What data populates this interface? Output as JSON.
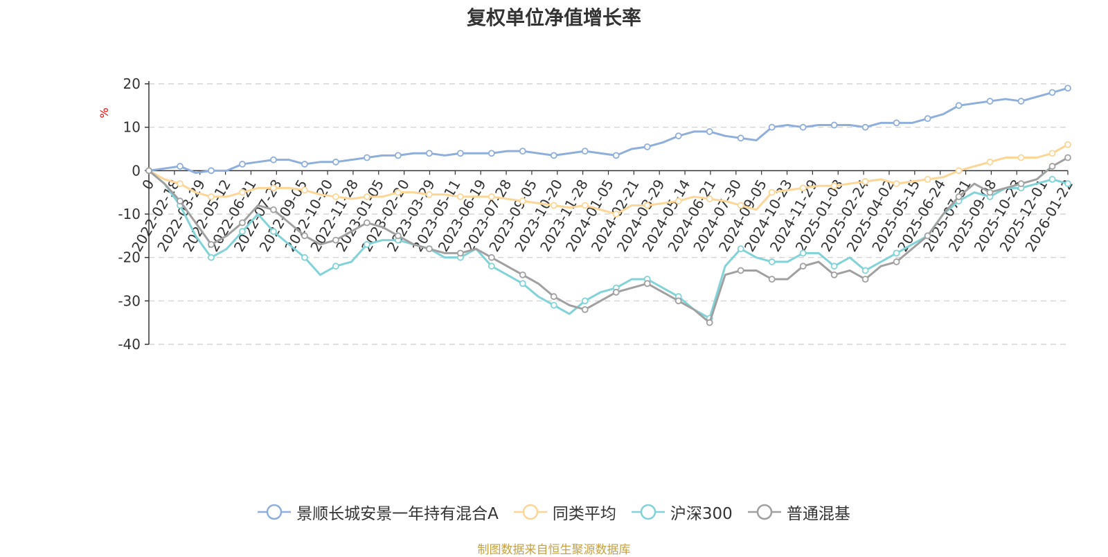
{
  "chart_data": {
    "type": "line",
    "title": "复权单位净值增长率",
    "ylabel": "%",
    "ylim": [
      -40,
      20
    ],
    "yticks": [
      -40,
      -30,
      -20,
      -10,
      0,
      10,
      20
    ],
    "grid": true,
    "x_start_label": "0",
    "x_tick_labels": [
      "2022-02-18",
      "2022-03-29",
      "2022-05-12",
      "2022-06-21",
      "2022-07-28",
      "2022-09-05",
      "2022-10-20",
      "2022-11-28",
      "2023-01-05",
      "2023-02-20",
      "2023-03-29",
      "2023-05-11",
      "2023-06-19",
      "2023-07-28",
      "2023-09-05",
      "2023-10-20",
      "2023-11-28",
      "2024-01-05",
      "2024-02-21",
      "2024-03-29",
      "2024-05-14",
      "2024-06-21",
      "2024-07-30",
      "2024-09-05",
      "2024-10-23",
      "2024-11-29",
      "2025-01-08",
      "2025-02-24",
      "2025-04-02",
      "2025-05-15",
      "2025-06-24",
      "2025-07-31",
      "2025-09-08",
      "2025-10-23",
      "2025-12-01",
      "2026-01-22"
    ],
    "legend_position": "bottom",
    "source_note": "制图数据来自恒生聚源数据库",
    "series": [
      {
        "name": "景顺长城安景一年持有混合A",
        "color": "#8eaedc",
        "values": [
          0,
          0.5,
          1,
          -0.5,
          0,
          0,
          1.5,
          2,
          2.5,
          2.5,
          1.5,
          2,
          2,
          2.5,
          3,
          3.5,
          3.5,
          4,
          4,
          3.5,
          4,
          4,
          4,
          4.5,
          4.5,
          4,
          3.5,
          4,
          4.5,
          4,
          3.5,
          5,
          5.5,
          6.5,
          8,
          9,
          9,
          8,
          7.5,
          7,
          10,
          10.5,
          10,
          10.5,
          10.5,
          10.5,
          10,
          11,
          11,
          11,
          12,
          13,
          15,
          15.5,
          16,
          16.5,
          16,
          17,
          18,
          19
        ]
      },
      {
        "name": "同类平均",
        "color": "#fcd696",
        "values": [
          0,
          -2,
          -3,
          -5,
          -6,
          -6,
          -5,
          -4,
          -4,
          -4,
          -4.5,
          -5.5,
          -6,
          -6.5,
          -6,
          -6,
          -5,
          -5,
          -5.5,
          -5.5,
          -6,
          -6,
          -6,
          -6.5,
          -7,
          -7.5,
          -8,
          -8.5,
          -8,
          -9,
          -10,
          -8,
          -8,
          -7.5,
          -7,
          -6,
          -6.5,
          -7,
          -8,
          -9,
          -5,
          -4.5,
          -4,
          -3.5,
          -3.5,
          -3,
          -2.5,
          -2,
          -3,
          -2.5,
          -2,
          -1.5,
          0,
          1,
          2,
          3,
          3,
          3,
          4,
          6
        ]
      },
      {
        "name": "沪深300",
        "color": "#81d3d8",
        "values": [
          0,
          -3,
          -8,
          -15,
          -20,
          -18,
          -14,
          -10,
          -14,
          -17,
          -20,
          -24,
          -22,
          -21,
          -17,
          -16,
          -16,
          -17,
          -18,
          -20,
          -20,
          -18,
          -22,
          -24,
          -26,
          -29,
          -31,
          -33,
          -30,
          -28,
          -27,
          -25,
          -25,
          -27,
          -29,
          -32,
          -34,
          -22,
          -18,
          -20,
          -21,
          -21,
          -19,
          -19,
          -22,
          -20,
          -23,
          -21,
          -19,
          -17,
          -15,
          -10,
          -7,
          -5,
          -6,
          -4,
          -4,
          -3,
          -2,
          -3
        ]
      },
      {
        "name": "普通混基",
        "color": "#a0a0a0",
        "values": [
          0,
          -3,
          -7,
          -12,
          -17,
          -15,
          -12,
          -8,
          -9,
          -12,
          -15,
          -17,
          -16,
          -14,
          -12,
          -13,
          -15,
          -17,
          -18,
          -19,
          -19,
          -18,
          -20,
          -22,
          -24,
          -26,
          -29,
          -31,
          -32,
          -30,
          -28,
          -27,
          -26,
          -28,
          -30,
          -32,
          -35,
          -24,
          -23,
          -23,
          -25,
          -25,
          -22,
          -21,
          -24,
          -23,
          -25,
          -22,
          -21,
          -18,
          -15,
          -10,
          -6,
          -3,
          -5,
          -4,
          -3,
          -2,
          1,
          3
        ]
      }
    ]
  }
}
